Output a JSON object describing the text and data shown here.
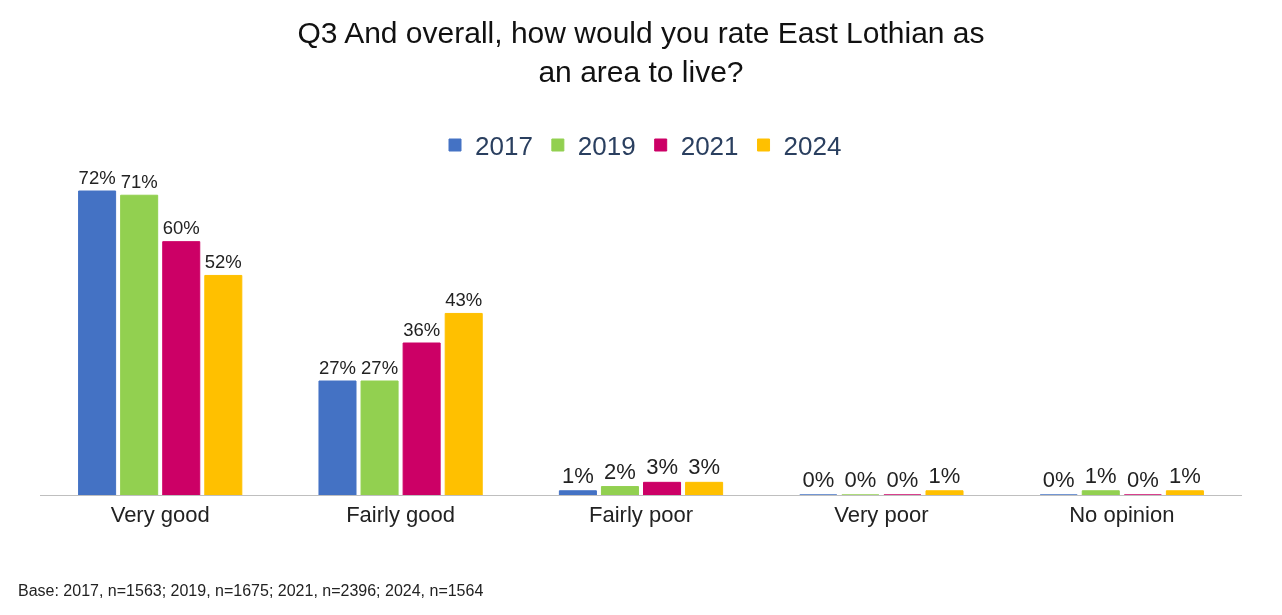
{
  "chart_data": {
    "type": "bar",
    "title": "Q3 And overall, how would you rate East Lothian as\nan area to live?",
    "categories": [
      "Very good",
      "Fairly good",
      "Fairly poor",
      "Very poor",
      "No opinion"
    ],
    "series": [
      {
        "name": "2017",
        "color": "#4472c4",
        "values": [
          72,
          27,
          1,
          0,
          0
        ],
        "value_labels": [
          "72%",
          "27%",
          "1%",
          "0%",
          "0%"
        ]
      },
      {
        "name": "2019",
        "color": "#92d050",
        "values": [
          71,
          27,
          2,
          0,
          1
        ],
        "value_labels": [
          "71%",
          "27%",
          "2%",
          "0%",
          "1%"
        ]
      },
      {
        "name": "2021",
        "color": "#cc0066",
        "values": [
          60,
          36,
          3,
          0,
          0
        ],
        "value_labels": [
          "60%",
          "36%",
          "3%",
          "0%",
          "0%"
        ]
      },
      {
        "name": "2024",
        "color": "#ffc000",
        "values": [
          52,
          43,
          3,
          1,
          1
        ],
        "value_labels": [
          "52%",
          "43%",
          "3%",
          "1%",
          "1%"
        ]
      }
    ],
    "legend": "top",
    "annotations": [
      "Base: 2017, n=1563; 2019, n=1675; 2021, n=2396; 2024, n=1564"
    ]
  }
}
